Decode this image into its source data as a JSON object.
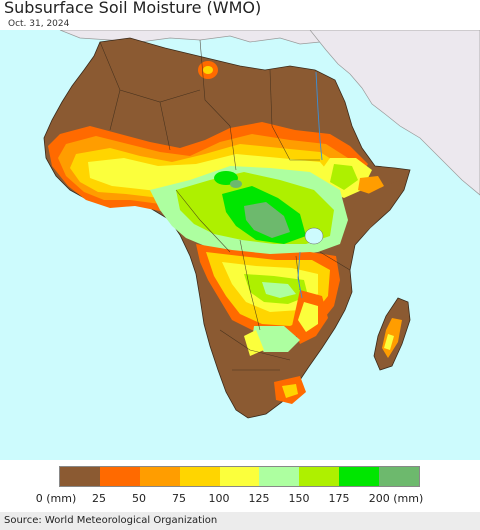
{
  "title": "Subsurface Soil Moisture (WMO)",
  "date": "Oct. 31, 2024",
  "source": "Source: World Meteorological Organization",
  "legend": {
    "colors": [
      "#8b5a32",
      "#ff6a00",
      "#ff9d00",
      "#ffd500",
      "#fbff3c",
      "#adffa0",
      "#aef000",
      "#00e600",
      "#6db96d"
    ],
    "ticks": [
      "0 (mm)",
      "25",
      "50",
      "75",
      "100",
      "125",
      "150",
      "175",
      "200 (mm)"
    ]
  },
  "map": {
    "ocean_color": "#cdfbfd",
    "non_africa_land_color": "#ece8ee",
    "dry_color": "#8b5a32"
  }
}
